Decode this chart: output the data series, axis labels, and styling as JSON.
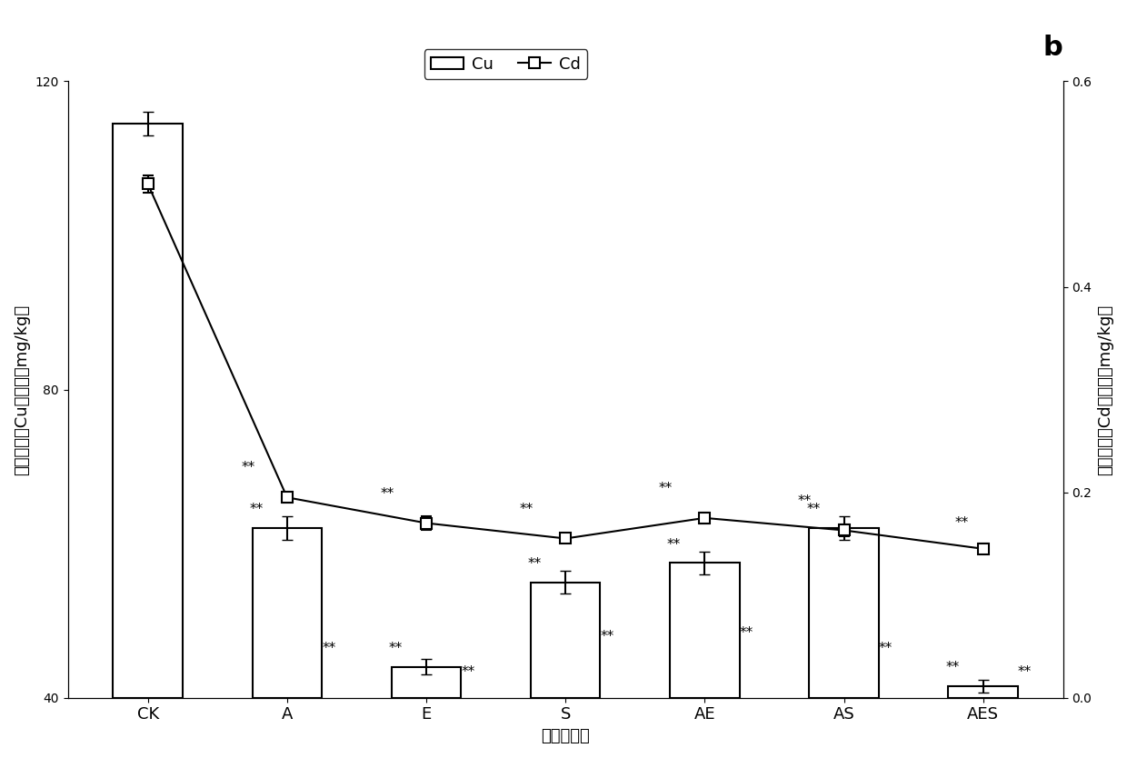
{
  "categories": [
    "CK",
    "A",
    "E",
    "S",
    "AE",
    "AS",
    "AES"
  ],
  "cu_values": [
    114.5,
    62.0,
    44.0,
    55.0,
    57.5,
    62.0,
    41.5
  ],
  "cu_errors": [
    1.5,
    1.5,
    1.0,
    1.5,
    1.5,
    1.5,
    0.8
  ],
  "cd_values": [
    0.5,
    0.195,
    0.17,
    0.155,
    0.175,
    0.163,
    0.145
  ],
  "cd_errors": [
    0.008,
    0.005,
    0.007,
    0.004,
    0.005,
    0.006,
    0.005
  ],
  "cu_ylim": [
    40,
    120
  ],
  "cu_yticks": [
    40,
    80,
    120
  ],
  "cd_ylim": [
    0,
    0.6
  ],
  "cd_yticks": [
    0,
    0.2,
    0.4,
    0.6
  ],
  "xlabel": "植物处理组",
  "ylabel_left": "土壤样品中Cu的含量（mg/kg）",
  "ylabel_right": "土壤样品中Cd的含量（mg/kg）",
  "legend_cu": "Cu",
  "legend_cd": "Cd",
  "panel_label": "b",
  "bar_color": "#ffffff",
  "bar_edge_color": "#000000",
  "line_color": "#000000",
  "marker_style": "s",
  "marker_facecolor": "#ffffff",
  "marker_edgecolor": "#000000",
  "cd_sig_labels": [
    "",
    "**",
    "**",
    "**",
    "**",
    "**",
    "**"
  ],
  "cu_sig_above": [
    "",
    "**",
    "**",
    "**",
    "**",
    "**",
    "**"
  ],
  "cu_sig_below": [
    "",
    "**",
    "**",
    "**",
    "**",
    "**",
    "**"
  ],
  "bar_width": 0.5,
  "figsize": [
    12.4,
    8.34
  ],
  "dpi": 100
}
